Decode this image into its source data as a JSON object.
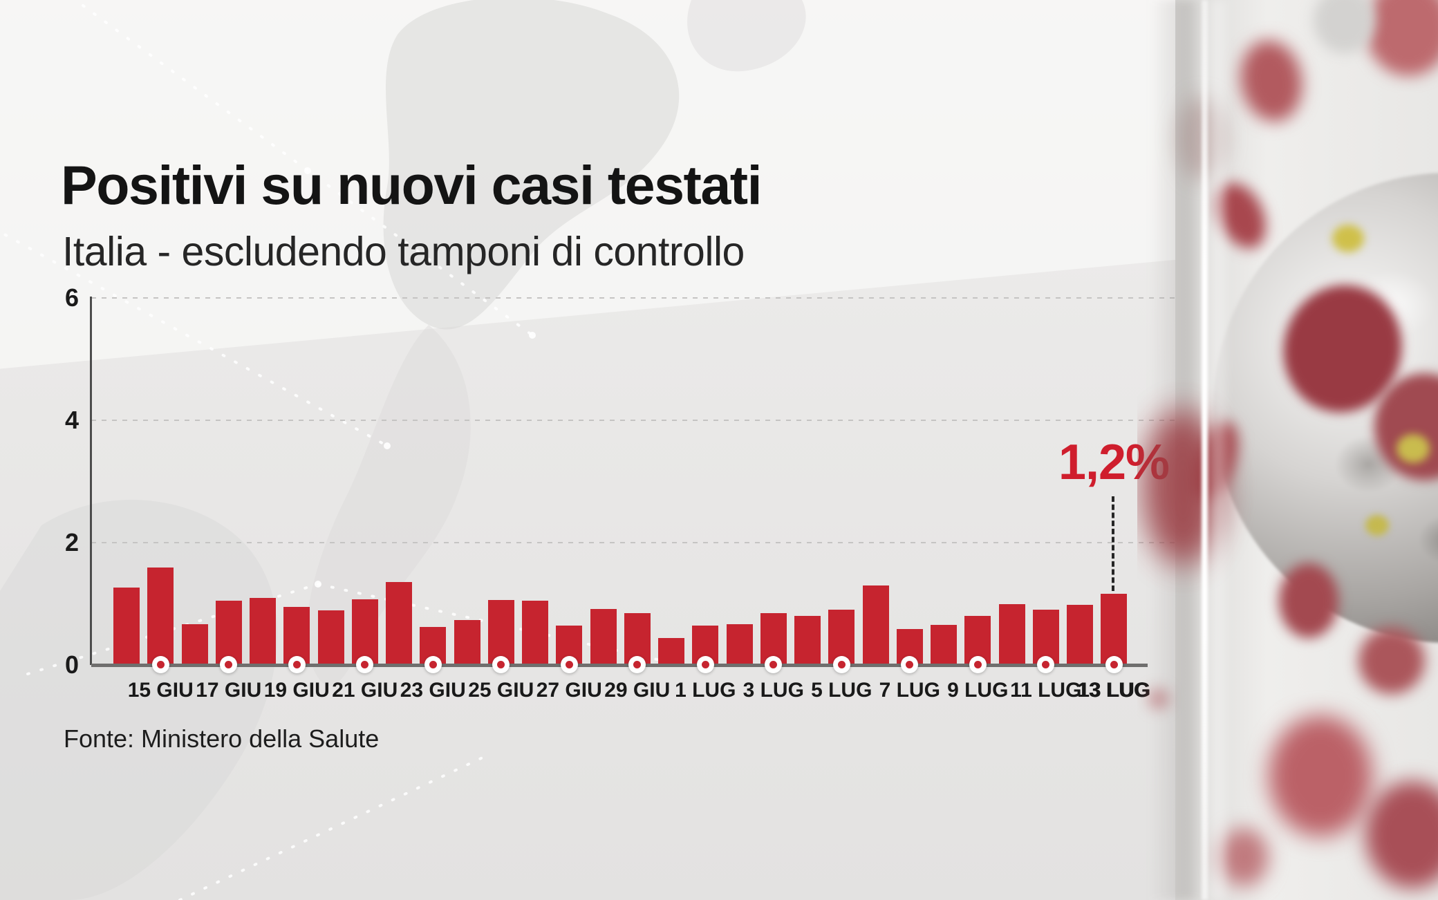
{
  "header": {
    "title": "Positivi su nuovi casi testati",
    "subtitle": "Italia - escludendo tamponi di controllo"
  },
  "annotation": {
    "value_label": "1,2%"
  },
  "source_line": "Fonte: Ministero della Salute",
  "colors": {
    "bar_red": "#c6242f",
    "annotation_red": "#cf1e2d",
    "baseline_gray": "#6f6e6d",
    "text_dark": "#191919",
    "background": "#e9e8e7"
  },
  "chart_data": {
    "type": "bar",
    "title": "Positivi su nuovi casi testati",
    "subtitle": "Italia - escludendo tamponi di controllo",
    "unit": "percent",
    "x": [
      "14 GIU",
      "15 GIU",
      "16 GIU",
      "17 GIU",
      "18 GIU",
      "19 GIU",
      "20 GIU",
      "21 GIU",
      "22 GIU",
      "23 GIU",
      "24 GIU",
      "25 GIU",
      "26 GIU",
      "27 GIU",
      "28 GIU",
      "29 GIU",
      "30 GIU",
      "1 LUG",
      "2 LUG",
      "3 LUG",
      "4 LUG",
      "5 LUG",
      "6 LUG",
      "7 LUG",
      "8 LUG",
      "9 LUG",
      "10 LUG",
      "11 LUG",
      "12 LUG",
      "13 LUG"
    ],
    "values": [
      1.27,
      1.59,
      0.67,
      1.05,
      1.1,
      0.95,
      0.89,
      1.07,
      1.36,
      0.62,
      0.74,
      1.06,
      1.05,
      0.64,
      0.91,
      0.85,
      0.44,
      0.64,
      0.67,
      0.85,
      0.8,
      0.9,
      1.3,
      0.59,
      0.65,
      0.8,
      0.99,
      0.9,
      0.98,
      1.16
    ],
    "x_tick_labels": [
      "15 GIU",
      "17 GIU",
      "19 GIU",
      "21 GIU",
      "23 GIU",
      "25 GIU",
      "27 GIU",
      "29 GIU",
      "1 LUG",
      "3 LUG",
      "5 LUG",
      "7 LUG",
      "9 LUG",
      "11 LUG",
      "13 LUG"
    ],
    "bold_tick": "13 LUG",
    "y_ticks": [
      0,
      2,
      4,
      6
    ],
    "ylim": [
      0,
      6
    ],
    "grid": "horizontal dashed",
    "legend": null,
    "annotation": {
      "x": "13 LUG",
      "label": "1,2%"
    },
    "source": "Fonte: Ministero della Salute"
  }
}
